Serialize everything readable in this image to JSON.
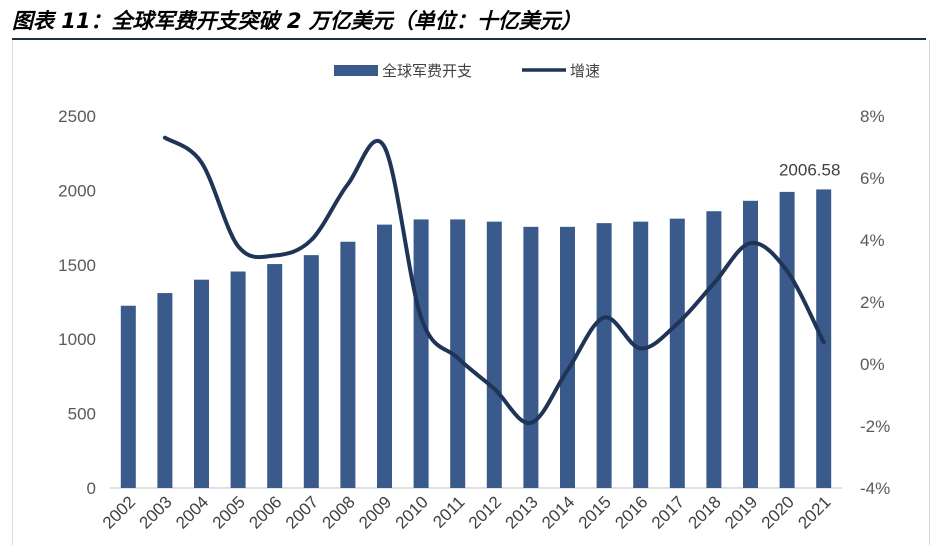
{
  "title": "图表 11：全球军费开支突破 2 万亿美元（单位：十亿美元）",
  "colors": {
    "bar": "#3a5a8c",
    "line": "#1f3456",
    "axis": "#bfbfbf",
    "title_rule": "#1f2d4a"
  },
  "chart_data": {
    "type": "bar+line",
    "categories": [
      "2002",
      "2003",
      "2004",
      "2005",
      "2006",
      "2007",
      "2008",
      "2009",
      "2010",
      "2011",
      "2012",
      "2013",
      "2014",
      "2015",
      "2016",
      "2017",
      "2018",
      "2019",
      "2020",
      "2021"
    ],
    "series": [
      {
        "name": "全球军费开支",
        "type": "bar",
        "axis": "left",
        "values": [
          1225,
          1310,
          1400,
          1455,
          1505,
          1565,
          1655,
          1770,
          1805,
          1805,
          1790,
          1755,
          1755,
          1780,
          1790,
          1810,
          1860,
          1930,
          1990,
          2006.58
        ]
      },
      {
        "name": "增速",
        "type": "line",
        "axis": "right",
        "values": [
          null,
          7.3,
          6.5,
          3.8,
          3.5,
          4.0,
          5.8,
          7.0,
          1.5,
          0.2,
          -0.8,
          -1.9,
          -0.2,
          1.5,
          0.5,
          1.3,
          2.6,
          3.9,
          3.0,
          0.7
        ]
      }
    ],
    "left_axis": {
      "ylim": [
        0,
        2500
      ],
      "ticks": [
        "0",
        "500",
        "1000",
        "1500",
        "2000",
        "2500"
      ]
    },
    "right_axis": {
      "ylim": [
        -4,
        8
      ],
      "ticks": [
        "-4%",
        "-2%",
        "0%",
        "2%",
        "4%",
        "6%",
        "8%"
      ]
    },
    "annotation": {
      "category": "2021",
      "text": "2006.58"
    },
    "legend": {
      "position": "top"
    },
    "grid": false
  }
}
